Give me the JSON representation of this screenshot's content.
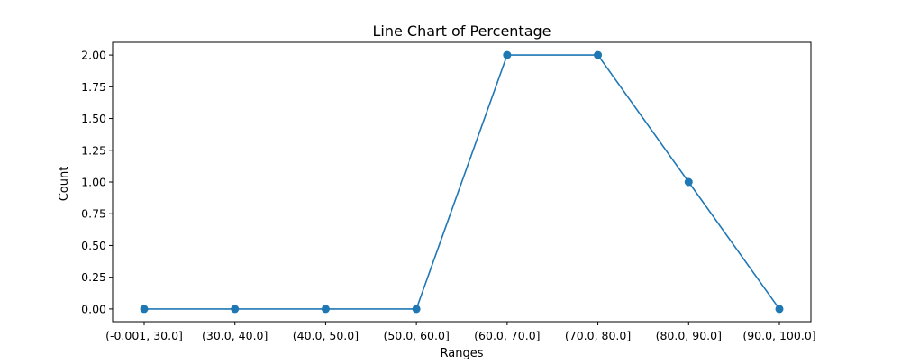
{
  "colors": {
    "series": "#1f77b4",
    "axis": "#000000",
    "background": "#ffffff"
  },
  "chart_data": {
    "type": "line",
    "title": "Line Chart of Percentage",
    "xlabel": "Ranges",
    "ylabel": "Count",
    "categories": [
      "(-0.001, 30.0]",
      "(30.0, 40.0]",
      "(40.0, 50.0]",
      "(50.0, 60.0]",
      "(60.0, 70.0]",
      "(70.0, 80.0]",
      "(80.0, 90.0]",
      "(90.0, 100.0]"
    ],
    "series": [
      {
        "values": [
          0,
          0,
          0,
          0,
          2,
          2,
          1,
          0
        ],
        "marker": "circle"
      }
    ],
    "ylim": [
      -0.1,
      2.1
    ],
    "yticks": [
      0.0,
      0.25,
      0.5,
      0.75,
      1.0,
      1.25,
      1.5,
      1.75,
      2.0
    ],
    "ytick_labels": [
      "0.00",
      "0.25",
      "0.50",
      "0.75",
      "1.00",
      "1.25",
      "1.50",
      "1.75",
      "2.00"
    ],
    "grid": false,
    "legend": "none"
  }
}
